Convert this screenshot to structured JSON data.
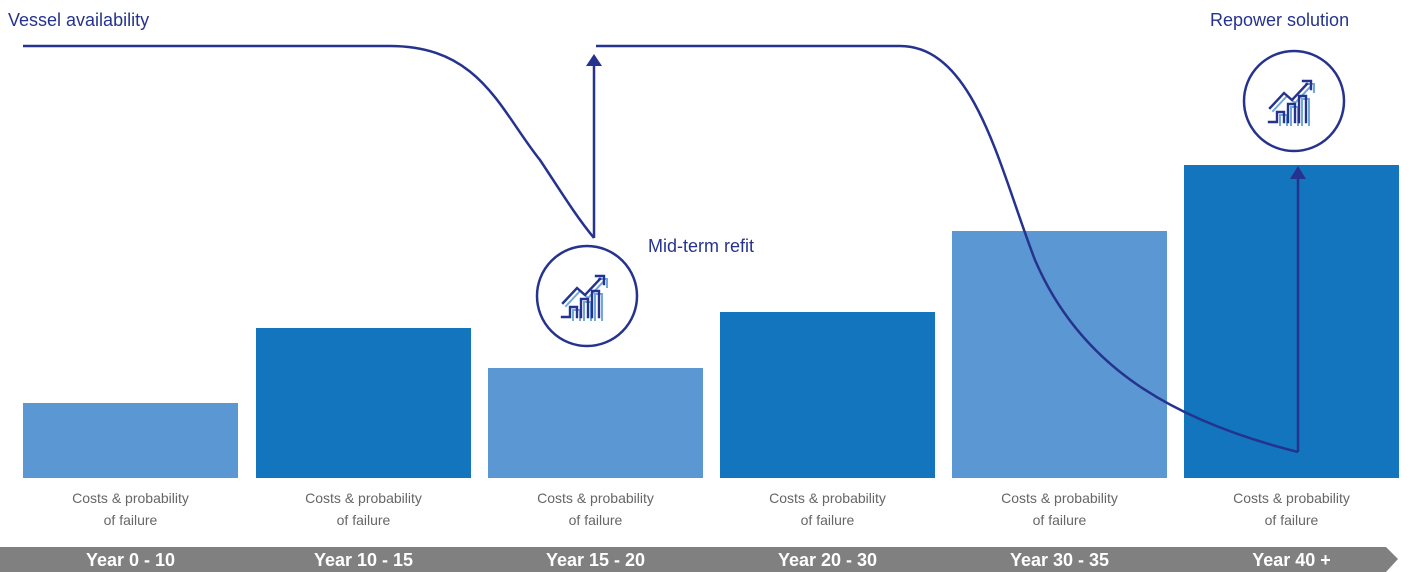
{
  "labels": {
    "availability": "Vessel availability",
    "mid_refit": "Mid-term refit",
    "repower": "Repower solution"
  },
  "colors": {
    "light_bar": "#5b97d2",
    "dark_bar": "#1275be",
    "curve": "#25338f",
    "timeline": "#808080",
    "caption": "#666666"
  },
  "icons": {
    "mid_refit": "growth-chart-icon",
    "repower": "growth-chart-icon"
  },
  "periods": [
    {
      "year": "Year 0 - 10",
      "caption_line1": "Costs & probability",
      "caption_line2": "of failure",
      "shade": "light",
      "relative_height": 0.24
    },
    {
      "year": "Year 10 - 15",
      "caption_line1": "Costs & probability",
      "caption_line2": "of failure",
      "shade": "dark",
      "relative_height": 0.48
    },
    {
      "year": "Year 15 - 20",
      "caption_line1": "Costs & probability",
      "caption_line2": "of failure",
      "shade": "light",
      "relative_height": 0.35
    },
    {
      "year": "Year 20 - 30",
      "caption_line1": "Costs & probability",
      "caption_line2": "of failure",
      "shade": "dark",
      "relative_height": 0.53
    },
    {
      "year": "Year 30 - 35",
      "caption_line1": "Costs & probability",
      "caption_line2": "of failure",
      "shade": "light",
      "relative_height": 0.79
    },
    {
      "year": "Year 40 +",
      "caption_line1": "Costs & probability",
      "caption_line2": "of failure",
      "shade": "dark",
      "relative_height": 1.0
    }
  ]
}
